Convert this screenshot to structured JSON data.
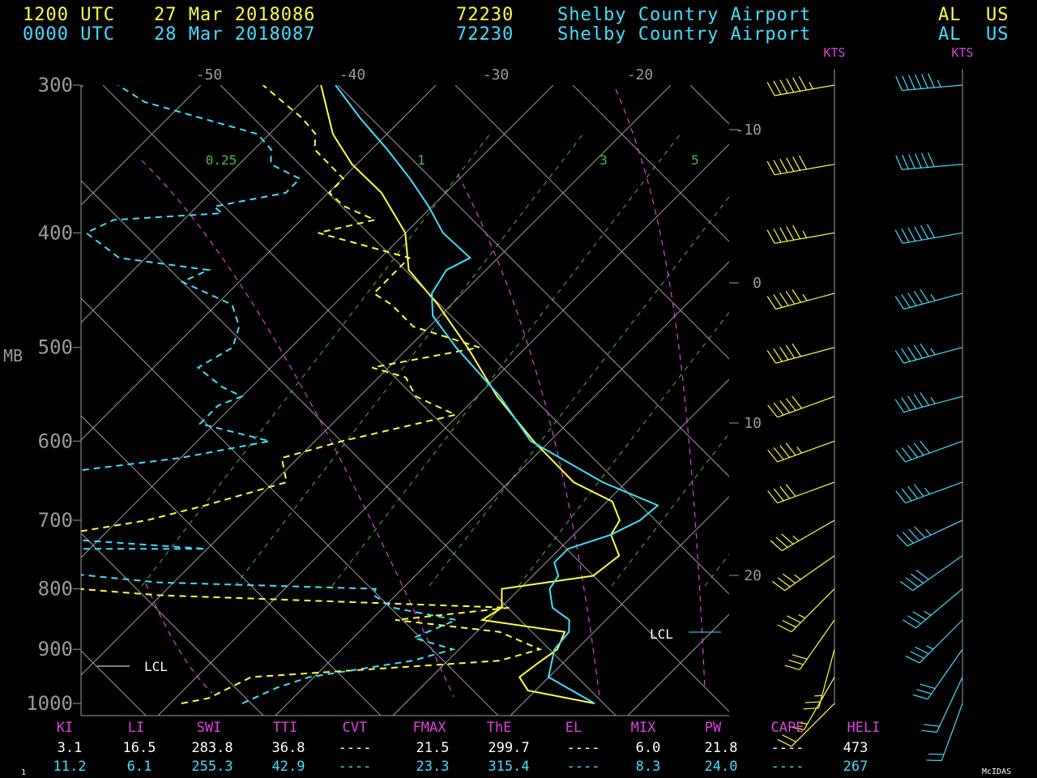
{
  "header": {
    "row1": {
      "time": "1200 UTC",
      "date": "27 Mar 2018086",
      "station_id": "72230",
      "station_name": "Shelby Country Airport",
      "state": "AL",
      "country": "US"
    },
    "row2": {
      "time": "0000 UTC",
      "date": "28 Mar 2018087",
      "station_id": "72230",
      "station_name": "Shelby Country Airport",
      "state": "AL",
      "country": "US"
    }
  },
  "colors": {
    "sounding1": "#ffff40",
    "sounding2": "#40e0ff",
    "labels": "#e040e0",
    "mixing": "#40c040",
    "grid": "#9a9a9a",
    "axis_text": "#9a9a9a"
  },
  "chart_data": {
    "type": "line",
    "ylabel": "MB",
    "pressure_ticks": [
      "300",
      "400",
      "500",
      "600",
      "700",
      "800",
      "900",
      "1000"
    ],
    "temperature_ticks": [
      "-50",
      "-40",
      "-30",
      "-20"
    ],
    "right_temp_ticks": [
      "-10",
      "0",
      "10",
      "20"
    ],
    "mixing_ratio_labels": [
      "0.25",
      "1",
      "3",
      "5"
    ],
    "wind_units": "KTS",
    "lcl_label": "LCL",
    "series": [
      {
        "color": "#ffff40",
        "temperature": [
          [
            1000,
            23.5
          ],
          [
            975,
            18.0
          ],
          [
            950,
            16.5
          ],
          [
            925,
            16.8
          ],
          [
            900,
            17.2
          ],
          [
            870,
            16.5
          ],
          [
            850,
            10.0
          ],
          [
            830,
            10.5
          ],
          [
            800,
            9.2
          ],
          [
            780,
            14.6
          ],
          [
            750,
            15.0
          ],
          [
            720,
            13.0
          ],
          [
            700,
            12.6
          ],
          [
            675,
            10.8
          ],
          [
            650,
            6.8
          ],
          [
            600,
            1.2
          ],
          [
            550,
            -4.4
          ],
          [
            500,
            -9.8
          ],
          [
            460,
            -14.8
          ],
          [
            430,
            -19.2
          ],
          [
            400,
            -22.0
          ],
          [
            370,
            -26.4
          ],
          [
            350,
            -30.4
          ],
          [
            330,
            -33.8
          ],
          [
            300,
            -38.0
          ]
        ],
        "dewpoint": [
          [
            1000,
            -5.0
          ],
          [
            990,
            -3.5
          ],
          [
            950,
            -2.0
          ],
          [
            920,
            14.0
          ],
          [
            900,
            16.0
          ],
          [
            870,
            12.0
          ],
          [
            850,
            4.0
          ],
          [
            830,
            11.0
          ],
          [
            810,
            -14.0
          ],
          [
            800,
            -20.0
          ],
          [
            780,
            -28.0
          ],
          [
            770,
            -35.0
          ],
          [
            760,
            -33.0
          ],
          [
            740,
            -35.0
          ],
          [
            720,
            -25.0
          ],
          [
            700,
            -20.0
          ],
          [
            680,
            -17.0
          ],
          [
            650,
            -13.0
          ],
          [
            620,
            -15.0
          ],
          [
            600,
            -12.0
          ],
          [
            570,
            -6.0
          ],
          [
            550,
            -10.0
          ],
          [
            530,
            -12.0
          ],
          [
            520,
            -15.0
          ],
          [
            500,
            -9.0
          ],
          [
            480,
            -15.0
          ],
          [
            460,
            -18.0
          ],
          [
            450,
            -20.0
          ],
          [
            420,
            -20.0
          ],
          [
            400,
            -28.0
          ],
          [
            390,
            -25.0
          ],
          [
            380,
            -28.0
          ],
          [
            370,
            -30.0
          ],
          [
            360,
            -30.0
          ],
          [
            340,
            -34.0
          ],
          [
            330,
            -35.0
          ],
          [
            320,
            -37.0
          ],
          [
            300,
            -42.0
          ]
        ]
      },
      {
        "color": "#40e0ff",
        "temperature": [
          [
            1000,
            23.5
          ],
          [
            950,
            18.5
          ],
          [
            900,
            17.0
          ],
          [
            870,
            16.8
          ],
          [
            850,
            16.0
          ],
          [
            830,
            14.0
          ],
          [
            810,
            13.0
          ],
          [
            800,
            12.5
          ],
          [
            780,
            12.2
          ],
          [
            760,
            11.0
          ],
          [
            740,
            11.0
          ],
          [
            720,
            13.0
          ],
          [
            700,
            14.0
          ],
          [
            680,
            14.2
          ],
          [
            650,
            8.8
          ],
          [
            600,
            1.0
          ],
          [
            550,
            -4.2
          ],
          [
            500,
            -10.6
          ],
          [
            470,
            -14.4
          ],
          [
            450,
            -16.0
          ],
          [
            430,
            -16.6
          ],
          [
            420,
            -15.8
          ],
          [
            400,
            -19.4
          ],
          [
            380,
            -22.2
          ],
          [
            360,
            -25.4
          ],
          [
            340,
            -29.0
          ],
          [
            320,
            -33.0
          ],
          [
            300,
            -37.0
          ]
        ],
        "dewpoint": [
          [
            1000,
            -0.8
          ],
          [
            970,
            0.5
          ],
          [
            950,
            2.0
          ],
          [
            920,
            8.0
          ],
          [
            900,
            10.0
          ],
          [
            880,
            6.5
          ],
          [
            850,
            8.2
          ],
          [
            830,
            3.0
          ],
          [
            810,
            0.8
          ],
          [
            800,
            0.5
          ],
          [
            790,
            -15.0
          ],
          [
            780,
            -20.0
          ],
          [
            770,
            -25.0
          ],
          [
            740,
            -27.0
          ],
          [
            740,
            -14.0
          ],
          [
            720,
            -29.0
          ],
          [
            700,
            -31.5
          ],
          [
            690,
            -28.0
          ],
          [
            660,
            -31.0
          ],
          [
            640,
            -30.0
          ],
          [
            620,
            -22.0
          ],
          [
            600,
            -17.0
          ],
          [
            580,
            -23.0
          ],
          [
            560,
            -23.0
          ],
          [
            550,
            -22.0
          ],
          [
            540,
            -24.0
          ],
          [
            520,
            -27.0
          ],
          [
            500,
            -26.0
          ],
          [
            480,
            -27.0
          ],
          [
            460,
            -29.0
          ],
          [
            440,
            -34.0
          ],
          [
            430,
            -33.0
          ],
          [
            420,
            -40.0
          ],
          [
            400,
            -44.0
          ],
          [
            390,
            -43.0
          ],
          [
            385,
            -36.0
          ],
          [
            380,
            -37.0
          ],
          [
            370,
            -33.0
          ],
          [
            360,
            -33.0
          ],
          [
            350,
            -36.0
          ],
          [
            340,
            -37.0
          ],
          [
            330,
            -39.0
          ],
          [
            310,
            -49.0
          ],
          [
            300,
            -52.0
          ]
        ]
      }
    ]
  },
  "winds": {
    "yellow": [
      [
        1000,
        225,
        20
      ],
      [
        950,
        210,
        15
      ],
      [
        900,
        195,
        25
      ],
      [
        850,
        215,
        30
      ],
      [
        800,
        225,
        35
      ],
      [
        750,
        235,
        35
      ],
      [
        700,
        240,
        35
      ],
      [
        650,
        250,
        40
      ],
      [
        600,
        250,
        45
      ],
      [
        550,
        250,
        50
      ],
      [
        500,
        255,
        50
      ],
      [
        450,
        255,
        55
      ],
      [
        400,
        260,
        55
      ],
      [
        350,
        260,
        60
      ],
      [
        300,
        260,
        65
      ]
    ],
    "cyan": [
      [
        1000,
        200,
        20
      ],
      [
        950,
        205,
        20
      ],
      [
        900,
        215,
        30
      ],
      [
        850,
        225,
        35
      ],
      [
        800,
        230,
        35
      ],
      [
        750,
        235,
        40
      ],
      [
        700,
        245,
        45
      ],
      [
        650,
        250,
        45
      ],
      [
        600,
        250,
        50
      ],
      [
        550,
        255,
        55
      ],
      [
        500,
        255,
        55
      ],
      [
        450,
        255,
        55
      ],
      [
        400,
        260,
        60
      ],
      [
        350,
        265,
        60
      ],
      [
        300,
        265,
        65
      ]
    ]
  },
  "indices": {
    "labels": [
      "KI",
      "LI",
      "SWI",
      "TTI",
      "CVT",
      "FMAX",
      "ThE",
      "EL",
      "MIX",
      "PW",
      "CAPE",
      "HELI"
    ],
    "row1": [
      "3.1",
      "16.5",
      "283.8",
      "36.8",
      "----",
      "21.5",
      "299.7",
      "----",
      "6.0",
      "21.8",
      "----",
      "473"
    ],
    "row2": [
      "11.2",
      "6.1",
      "255.3",
      "42.9",
      "----",
      "23.3",
      "315.4",
      "----",
      "8.3",
      "24.0",
      "----",
      "267"
    ]
  },
  "footer": {
    "page_number": "1",
    "software": "McIDAS"
  }
}
